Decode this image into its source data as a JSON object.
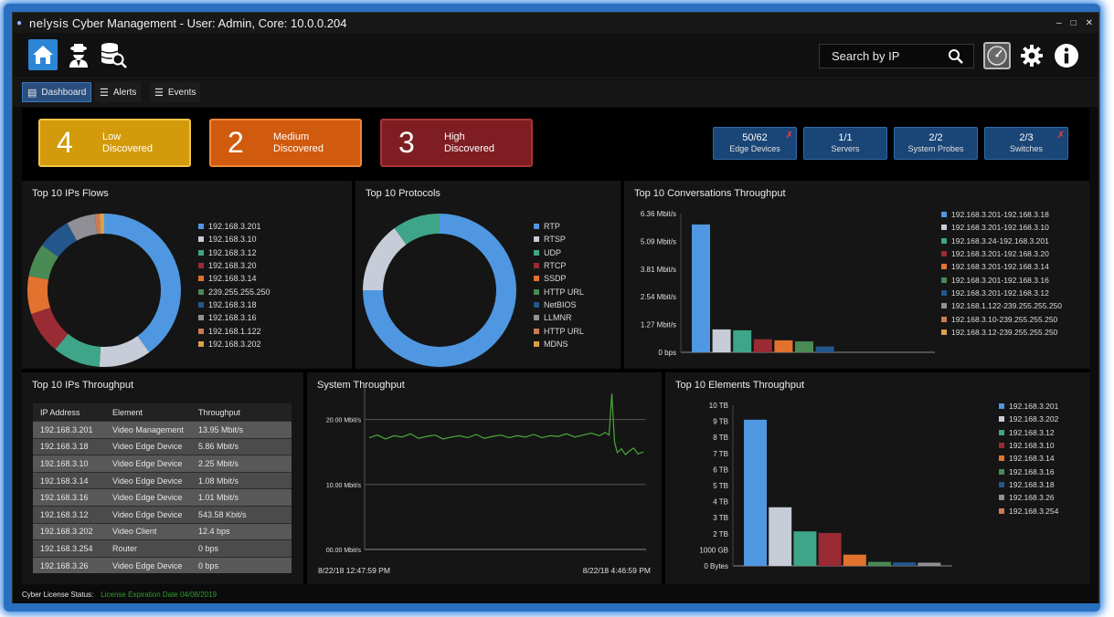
{
  "window": {
    "title_brand": "nelysis",
    "title_text": "Cyber Management - User: Admin, Core: 10.0.0.204",
    "controls": [
      "–",
      "□",
      "✕"
    ]
  },
  "toolbar": {
    "search_placeholder": "Search by IP"
  },
  "tabs": [
    {
      "label": "Dashboard",
      "icon": "dashboard-icon",
      "active": true
    },
    {
      "label": "Alerts",
      "icon": "list-icon",
      "active": false
    },
    {
      "label": "Events",
      "icon": "list-icon",
      "active": false
    }
  ],
  "severity": [
    {
      "count": "4",
      "level": "Low",
      "label": "Discovered",
      "color": "#d39b0c"
    },
    {
      "count": "2",
      "level": "Medium",
      "label": "Discovered",
      "color": "#d05a0e"
    },
    {
      "count": "3",
      "level": "High",
      "label": "Discovered",
      "color": "#7f1e22"
    }
  ],
  "devices": [
    {
      "value": "50/62",
      "label": "Edge Devices",
      "warning": true
    },
    {
      "value": "1/1",
      "label": "Servers",
      "warning": false
    },
    {
      "value": "2/2",
      "label": "System Probes",
      "warning": false
    },
    {
      "value": "2/3",
      "label": "Switches",
      "warning": true
    }
  ],
  "flows": {
    "title": "Top 10 IPs Flows",
    "chart_data": {
      "type": "pie",
      "donut": true,
      "categories": [
        "192.168.3.201",
        "192.168.3.10",
        "192.168.3.12",
        "192.168.3.20",
        "192.168.3.14",
        "239.255.255.250",
        "192.168.3.18",
        "192.168.3.16",
        "192.168.1.122",
        "192.168.3.202"
      ],
      "values": [
        40,
        11,
        10,
        9,
        8,
        7,
        7,
        6,
        1,
        1
      ],
      "colors": [
        "#4f97e0",
        "#c6ccd8",
        "#3fa588",
        "#9a2a33",
        "#e2722d",
        "#4a8a55",
        "#23578c",
        "#8f8f95",
        "#cc7a55",
        "#d9a04a"
      ]
    }
  },
  "protocols": {
    "title": "Top 10 Protocols",
    "chart_data": {
      "type": "pie",
      "donut": true,
      "categories": [
        "RTP",
        "RTSP",
        "UDP",
        "RTCP",
        "SSDP",
        "HTTP URL",
        "NetBIOS",
        "LLMNR",
        "HTTP URL",
        "MDNS"
      ],
      "values": [
        75,
        15,
        10,
        0,
        0,
        0,
        0,
        0,
        0,
        0
      ],
      "colors": [
        "#4f97e0",
        "#c6ccd8",
        "#3fa588",
        "#9a2a33",
        "#e2722d",
        "#4a8a55",
        "#23578c",
        "#8f8f95",
        "#cc7a55",
        "#d9a04a"
      ]
    }
  },
  "conversations": {
    "title": "Top 10 Conversations Throughput",
    "chart_data": {
      "type": "bar",
      "y_ticks": [
        "0 bps",
        "1.27 Mbit/s",
        "2.54 Mbit/s",
        "3.81 Mbit/s",
        "5.09 Mbit/s",
        "6.36 Mbit/s"
      ],
      "ylim": [
        0,
        6.36
      ],
      "unit": "Mbit/s",
      "categories": [
        "192.168.3.201-192.168.3.18",
        "192.168.3.201-192.168.3.10",
        "192.168.3.24-192.168.3.201",
        "192.168.3.201-192.168.3.20",
        "192.168.3.201-192.168.3.14",
        "192.168.3.201-192.168.3.16",
        "192.168.3.201-192.168.3.12",
        "192.168.1.122-239.255.255.250",
        "192.168.3.10-239.255.255.250",
        "192.168.3.12-239.255.255.250"
      ],
      "values": [
        5.86,
        1.05,
        1.01,
        0.6,
        0.55,
        0.5,
        0.27,
        0,
        0,
        0
      ],
      "colors": [
        "#4f97e0",
        "#c6ccd8",
        "#3fa588",
        "#9a2a33",
        "#e2722d",
        "#4a8a55",
        "#23578c",
        "#8f8f95",
        "#cc7a55",
        "#d9a04a"
      ]
    }
  },
  "throughput_table": {
    "title": "Top 10 IPs Throughput",
    "columns": [
      "IP Address",
      "Element",
      "Throughput"
    ],
    "rows": [
      [
        "192.168.3.201",
        "Video Management",
        "13.95 Mbit/s"
      ],
      [
        "192.168.3.18",
        "Video Edge Device",
        "5.86 Mbit/s"
      ],
      [
        "192.168.3.10",
        "Video Edge Device",
        "2.25 Mbit/s"
      ],
      [
        "192.168.3.14",
        "Video Edge Device",
        "1.08 Mbit/s"
      ],
      [
        "192.168.3.16",
        "Video Edge Device",
        "1.01 Mbit/s"
      ],
      [
        "192.168.3.12",
        "Video Edge Device",
        "543.58 Kbit/s"
      ],
      [
        "192.168.3.202",
        "Video Client",
        "12.4 bps"
      ],
      [
        "192.168.3.254",
        "Router",
        "0 bps"
      ],
      [
        "192.168.3.26",
        "Video Edge Device",
        "0 bps"
      ]
    ]
  },
  "system_throughput": {
    "title": "System Throughput",
    "start_label": "8/22/18 12:47:59 PM",
    "end_label": "8/22/18 4:46:59 PM",
    "chart_data": {
      "type": "line",
      "y_ticks": [
        "00.00 Mbit/s",
        "10.00 Mbit/s",
        "20.00 Mbit/s"
      ],
      "ylim": [
        0,
        25
      ],
      "unit": "Mbit/s",
      "series": [
        {
          "color": "#4aa83a",
          "points": [
            [
              0,
              17.2
            ],
            [
              3,
              17.6
            ],
            [
              6,
              17.0
            ],
            [
              9,
              17.5
            ],
            [
              12,
              17.3
            ],
            [
              15,
              17.8
            ],
            [
              18,
              17.1
            ],
            [
              21,
              17.4
            ],
            [
              24,
              17.6
            ],
            [
              27,
              17.0
            ],
            [
              30,
              17.3
            ],
            [
              33,
              17.5
            ],
            [
              36,
              17.2
            ],
            [
              39,
              17.7
            ],
            [
              42,
              17.1
            ],
            [
              45,
              17.4
            ],
            [
              48,
              17.6
            ],
            [
              51,
              17.2
            ],
            [
              54,
              17.5
            ],
            [
              57,
              17.3
            ],
            [
              60,
              17.7
            ],
            [
              63,
              17.2
            ],
            [
              66,
              17.5
            ],
            [
              69,
              17.4
            ],
            [
              72,
              17.8
            ],
            [
              75,
              17.3
            ],
            [
              78,
              17.6
            ],
            [
              81,
              17.9
            ],
            [
              84,
              17.5
            ],
            [
              86,
              18.0
            ],
            [
              87.5,
              17.6
            ],
            [
              88.5,
              24.0
            ],
            [
              89.5,
              16.5
            ],
            [
              90.5,
              14.9
            ],
            [
              92,
              15.5
            ],
            [
              93.5,
              14.6
            ],
            [
              95,
              15.2
            ],
            [
              96.5,
              15.6
            ],
            [
              98,
              14.7
            ],
            [
              100,
              15.0
            ]
          ]
        }
      ]
    }
  },
  "elements": {
    "title": "Top 10 Elements Throughput",
    "chart_data": {
      "type": "bar",
      "y_ticks": [
        "0 Bytes",
        "1000 GB",
        "2 TB",
        "3 TB",
        "4 TB",
        "5 TB",
        "6 TB",
        "7 TB",
        "8 TB",
        "9 TB",
        "10 TB"
      ],
      "ylim": [
        0,
        10
      ],
      "unit": "TB",
      "categories": [
        "192.168.3.201",
        "192.168.3.202",
        "192.168.3.12",
        "192.168.3.10",
        "192.168.3.14",
        "192.168.3.16",
        "192.168.3.18",
        "192.168.3.26",
        "192.168.3.254"
      ],
      "values": [
        9.1,
        3.65,
        2.15,
        2.05,
        0.7,
        0.25,
        0.22,
        0.2,
        0
      ],
      "colors": [
        "#4f97e0",
        "#c6ccd8",
        "#3fa588",
        "#9a2a33",
        "#e2722d",
        "#4a8a55",
        "#23578c",
        "#8f8f95",
        "#cc7a55"
      ]
    }
  },
  "footer": {
    "label": "Cyber License Status:",
    "status": "License Expiration Date 04/08/2019",
    "status_color": "#2fa02f"
  }
}
